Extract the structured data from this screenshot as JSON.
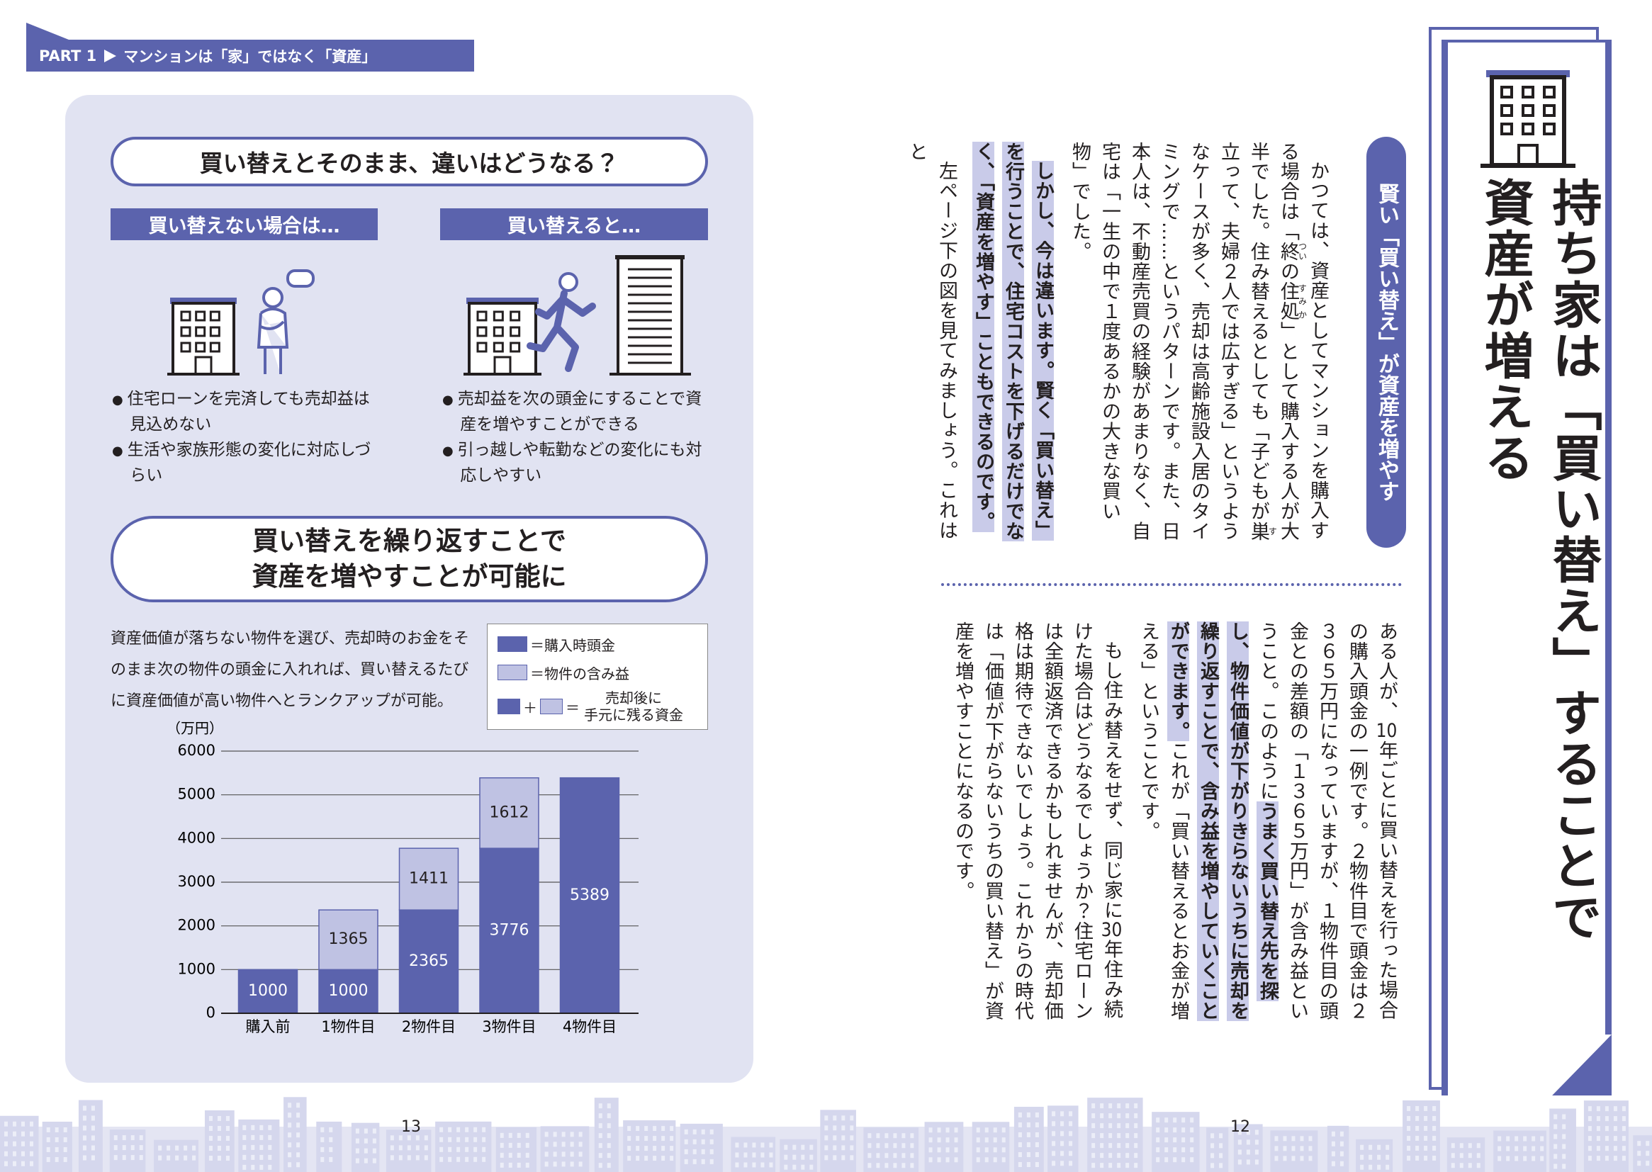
{
  "header": {
    "part": "PART 1",
    "title": "マンションは「家」ではなく「資産」"
  },
  "left": {
    "box1_title": "買い替えとそのまま、違いはどうなる？",
    "no_buy": {
      "label": "買い替えない場合は…",
      "bullets": [
        "住宅ローンを完済しても売却益は見込めない",
        "生活や家族形態の変化に対応しづらい"
      ]
    },
    "buy": {
      "label": "買い替えると…",
      "bullets": [
        "売却益を次の頭金にすることで資産を増やすことができる",
        "引っ越しや転勤などの変化にも対応しやすい"
      ]
    },
    "box2_title": [
      "買い替えを繰り返すことで",
      "資産を増やすことが可能に"
    ],
    "description": "資産価値が落ちない物件を選び、売却時のお金をそのまま次の物件の頭金に入れれば、買い替えるたびに資産価値が高い物件へとランクアップが可能。",
    "legend_combined": {
      "plus": "＋",
      "equals": "＝",
      "lines": [
        "売却後に",
        "手元に残る資金"
      ]
    },
    "chart": {
      "type": "bar",
      "stacked": true,
      "unit_label": "（万円）",
      "categories": [
        "購入前",
        "1物件目",
        "2物件目",
        "3物件目",
        "4物件目"
      ],
      "series": [
        {
          "name": "＝購入時頭金",
          "color": "#5b63ad",
          "values": [
            1000,
            1000,
            2365,
            3776,
            5389
          ]
        },
        {
          "name": "＝物件の含み益",
          "color": "#bfc2e3",
          "values": [
            null,
            1365,
            1411,
            1612,
            null
          ]
        }
      ],
      "ylim": [
        0,
        6000
      ],
      "yticks": [
        0,
        1000,
        2000,
        3000,
        4000,
        5000,
        6000
      ],
      "grid": true
    }
  },
  "right": {
    "title": [
      "持ち家は「買い替え」することで",
      "資産が増える"
    ],
    "subtitle": "賢い「買い替え」が資産を増やす",
    "top_block": [
      {
        "indent": true,
        "segments": [
          {
            "text": "かつては、資産としてマンションを購入する場合は「"
          },
          {
            "text": "終",
            "ruby": "つい"
          },
          {
            "text": "の"
          },
          {
            "text": "住処",
            "ruby": "すみか"
          },
          {
            "text": "」として購入する人が大半でした。住み替えるとしても「子どもが"
          },
          {
            "text": "巣",
            "ruby": "す"
          },
          {
            "text": "立って、夫婦２人では広すぎる」というようなケースが多く、売却は高齢施設入居のタイミングで……というパターンです。また、日本人は、不動産売買の経験があまりなく、自宅は「一生の中で１度あるかの大きな買い物」でした。"
          }
        ]
      },
      {
        "indent": true,
        "segments": [
          {
            "text": "しかし、今は違います。賢く「買い替え」を行うことで、住宅コストを下げるだけでなく、「資産を増やす」こともできるのです。",
            "bold": true
          }
        ]
      },
      {
        "indent": true,
        "segments": [
          {
            "text": "左ページ下の図を見てみましょう。これはと"
          }
        ]
      }
    ],
    "bottom_block": [
      {
        "indent": false,
        "segments": [
          {
            "text": "ある人が、"
          },
          {
            "text": "10",
            "upright": true
          },
          {
            "text": "年ごとに買い替えを行った場合の購入頭金の一例です。２物件目で頭金は２３６５万円になっていますが、１物件目の頭金との差額の「１３６５万円」が含み益ということ。このように"
          },
          {
            "text": "うまく買い替え先を探し、物件価値が下がりきらないうちに売却を繰り返すことで、含み益を増やしていくことができます。",
            "bold": true
          },
          {
            "text": "これが「買い替えるとお金が増える」ということです。"
          }
        ]
      },
      {
        "indent": true,
        "segments": [
          {
            "text": "もし住み替えをせず、同じ家に"
          },
          {
            "text": "30",
            "upright": true
          },
          {
            "text": "年住み続けた場合はどうなるでしょうか？住宅ローンは全額返済できるかもしれませんが、売却価格は期待できないでしょう。これからの時代は「価値が下がらないうちの買い替え」が資産を増やすことになるのです。"
          }
        ]
      }
    ]
  },
  "page_numbers": {
    "left": "13",
    "right": "12"
  }
}
